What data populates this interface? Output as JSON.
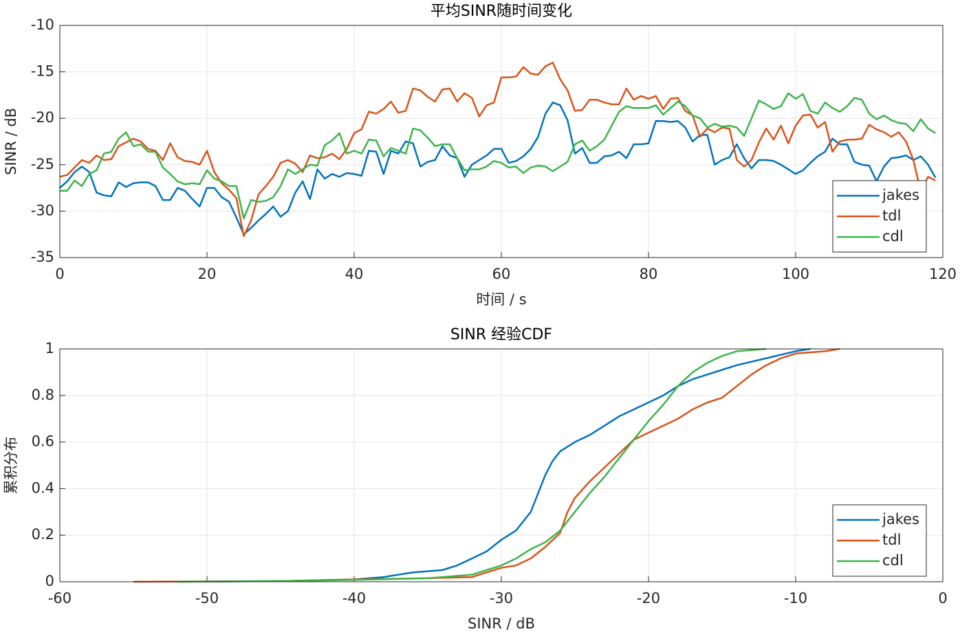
{
  "chart_data": [
    {
      "type": "line",
      "title": "平均SINR随时间变化",
      "xlabel": "时间 / s",
      "ylabel": "SINR / dB",
      "xlim": [
        0,
        120
      ],
      "ylim": [
        -35,
        -10
      ],
      "xticks": [
        0,
        20,
        40,
        60,
        80,
        100,
        120
      ],
      "yticks": [
        -35,
        -30,
        -25,
        -20,
        -15,
        -10
      ],
      "grid": true,
      "legend": "southeast",
      "x": [
        0,
        1,
        2,
        3,
        4,
        5,
        6,
        7,
        8,
        9,
        10,
        11,
        12,
        13,
        14,
        15,
        16,
        17,
        18,
        19,
        20,
        21,
        22,
        23,
        24,
        25,
        26,
        27,
        28,
        29,
        30,
        31,
        32,
        33,
        34,
        35,
        36,
        37,
        38,
        39,
        40,
        41,
        42,
        43,
        44,
        45,
        46,
        47,
        48,
        49,
        50,
        51,
        52,
        53,
        54,
        55,
        56,
        57,
        58,
        59,
        60,
        61,
        62,
        63,
        64,
        65,
        66,
        67,
        68,
        69,
        70,
        71,
        72,
        73,
        74,
        75,
        76,
        77,
        78,
        79,
        80,
        81,
        82,
        83,
        84,
        85,
        86,
        87,
        88,
        89,
        90,
        91,
        92,
        93,
        94,
        95,
        96,
        97,
        98,
        99,
        100,
        101,
        102,
        103,
        104,
        105,
        106,
        107,
        108,
        109,
        110,
        111,
        112,
        113,
        114,
        115,
        116,
        117,
        118,
        119
      ],
      "series": [
        {
          "name": "jakes",
          "color": "#0072BD",
          "values": [
            -27.5,
            -26.8,
            -25.8,
            -25.2,
            -25.8,
            -28,
            -28.3,
            -28.4,
            -26.9,
            -27.4,
            -27,
            -26.9,
            -26.9,
            -27.3,
            -28.8,
            -28.8,
            -27.5,
            -27.8,
            -28.7,
            -29.5,
            -27.5,
            -27.5,
            -28.5,
            -29,
            -30.7,
            -32.5,
            -31.8,
            -31,
            -30.3,
            -29.5,
            -30.6,
            -30,
            -28,
            -26.8,
            -28.7,
            -25.5,
            -26.5,
            -26,
            -26.3,
            -25.9,
            -26,
            -26.2,
            -23.5,
            -23.6,
            -26,
            -23.5,
            -23.8,
            -22.5,
            -22.7,
            -25.2,
            -24.7,
            -24.5,
            -23,
            -24,
            -24.3,
            -26.3,
            -25,
            -24.5,
            -24,
            -23.3,
            -23.3,
            -24.8,
            -24.6,
            -24.1,
            -23.3,
            -22,
            -19.5,
            -18.3,
            -18.6,
            -20.2,
            -23.8,
            -23.2,
            -24.8,
            -24.8,
            -24.1,
            -24,
            -23.6,
            -24.3,
            -22.8,
            -22.8,
            -22.7,
            -20.3,
            -20.3,
            -20.4,
            -20.3,
            -21,
            -22.5,
            -21.8,
            -21.8,
            -25,
            -24.5,
            -24.2,
            -22.8,
            -24.3,
            -25.4,
            -24.5,
            -24.5,
            -24.6,
            -25,
            -25.5,
            -26,
            -25.6,
            -24.8,
            -24.1,
            -23.6,
            -22.2,
            -22.8,
            -22.8,
            -24.7,
            -25,
            -25.1,
            -26.8,
            -25.2,
            -24.3,
            -24.2,
            -24,
            -24.5,
            -24.1,
            -25,
            -26.4
          ]
        },
        {
          "name": "tdl",
          "color": "#D95319",
          "values": [
            -26.3,
            -26.1,
            -25.3,
            -24.5,
            -24.8,
            -24,
            -24.5,
            -24.4,
            -23,
            -22.6,
            -22.2,
            -22.5,
            -23.3,
            -23.5,
            -24.5,
            -22.7,
            -24.2,
            -24.6,
            -24.7,
            -25,
            -23.5,
            -25.8,
            -27,
            -27.7,
            -28.6,
            -32.7,
            -31,
            -28.2,
            -27.3,
            -26.3,
            -24.8,
            -24.5,
            -24.9,
            -25.8,
            -24,
            -24.3,
            -24.2,
            -23.8,
            -24.4,
            -23.3,
            -21.6,
            -21.2,
            -19.3,
            -19.5,
            -19,
            -18.2,
            -19.4,
            -19.2,
            -16.8,
            -17,
            -17.7,
            -18.2,
            -16.9,
            -16.8,
            -18.2,
            -17.3,
            -17.8,
            -19.8,
            -18.6,
            -18.3,
            -15.6,
            -15.6,
            -15.5,
            -14.5,
            -15.2,
            -15.3,
            -14.4,
            -14,
            -15.8,
            -17,
            -19.2,
            -19.1,
            -18,
            -18,
            -18.3,
            -18.5,
            -18.5,
            -16.8,
            -18,
            -17.6,
            -17.9,
            -17.6,
            -19,
            -17.9,
            -17.8,
            -19.2,
            -19.7,
            -22,
            -21.1,
            -21.5,
            -21,
            -21.1,
            -24.5,
            -25.2,
            -24.5,
            -22.6,
            -21.1,
            -22.3,
            -20.8,
            -22.7,
            -20.8,
            -19.7,
            -19.6,
            -21,
            -20.4,
            -23.6,
            -22.5,
            -22.3,
            -22.3,
            -22.2,
            -20.7,
            -21.2,
            -21.5,
            -22,
            -21.5,
            -22.5,
            -24.5,
            -27.9,
            -26.3,
            -26.7
          ]
        },
        {
          "name": "cdl",
          "color": "#3DB34A",
          "values": [
            -27.8,
            -27.8,
            -26.7,
            -27.3,
            -26,
            -25.6,
            -23.8,
            -23.6,
            -22.2,
            -21.5,
            -23,
            -22.8,
            -23.6,
            -23.6,
            -25.3,
            -26,
            -26.8,
            -27.1,
            -27,
            -27.1,
            -25.6,
            -26.5,
            -26.8,
            -27.3,
            -27.3,
            -30.8,
            -28.8,
            -29,
            -28.9,
            -28.5,
            -27.3,
            -25.5,
            -26,
            -25.5,
            -25,
            -25.1,
            -22.9,
            -22.4,
            -21.6,
            -23.8,
            -23.5,
            -23.8,
            -22.3,
            -22.4,
            -24.1,
            -23.2,
            -23.5,
            -23.8,
            -21.1,
            -21.3,
            -22.1,
            -23,
            -22.8,
            -22.8,
            -24.3,
            -25.6,
            -25.5,
            -25.5,
            -25.2,
            -24.6,
            -24.8,
            -25.3,
            -25.2,
            -25.9,
            -25.3,
            -25.1,
            -25.2,
            -25.7,
            -25.2,
            -24.7,
            -22.8,
            -22.4,
            -23.5,
            -23,
            -22.3,
            -20.8,
            -19.3,
            -18.7,
            -18.9,
            -18.9,
            -18.9,
            -18.6,
            -19.6,
            -18.9,
            -18.2,
            -18.7,
            -19.7,
            -20,
            -21,
            -20.6,
            -20.9,
            -20.8,
            -21,
            -21.9,
            -20,
            -18.1,
            -18.5,
            -19,
            -18.7,
            -17.3,
            -17.9,
            -17.4,
            -19.2,
            -19.5,
            -18.3,
            -18.9,
            -19.3,
            -18.7,
            -17.8,
            -18,
            -19.5,
            -20.1,
            -19.7,
            -20.2,
            -20.5,
            -20.6,
            -21.4,
            -20.1,
            -21.1,
            -21.6
          ]
        }
      ]
    },
    {
      "type": "line",
      "title": "SINR 经验CDF",
      "xlabel": "SINR / dB",
      "ylabel": "累积分布",
      "xlim": [
        -60,
        0
      ],
      "ylim": [
        0,
        1
      ],
      "xticks": [
        -60,
        -50,
        -40,
        -30,
        -20,
        -10,
        0
      ],
      "yticks": [
        0,
        0.2,
        0.4,
        0.6,
        0.8,
        1
      ],
      "grid": true,
      "legend": "southeast",
      "series": [
        {
          "name": "jakes",
          "color": "#0072BD",
          "x": [
            -52,
            -45,
            -40,
            -38,
            -36,
            -34,
            -33,
            -32,
            -31,
            -30,
            -29,
            -28,
            -27.5,
            -27,
            -26.5,
            -26,
            -25,
            -24,
            -23,
            -22,
            -21,
            -20,
            -19,
            -18,
            -17,
            -16,
            -15,
            -14,
            -12,
            -10,
            -9
          ],
          "values": [
            0,
            0.003,
            0.01,
            0.02,
            0.04,
            0.05,
            0.07,
            0.1,
            0.13,
            0.18,
            0.22,
            0.3,
            0.38,
            0.46,
            0.52,
            0.56,
            0.6,
            0.63,
            0.67,
            0.71,
            0.74,
            0.77,
            0.8,
            0.84,
            0.87,
            0.89,
            0.91,
            0.93,
            0.96,
            0.99,
            1
          ]
        },
        {
          "name": "tdl",
          "color": "#D95319",
          "x": [
            -55,
            -45,
            -40,
            -35,
            -32,
            -31,
            -30,
            -29,
            -28,
            -27,
            -26,
            -25.5,
            -25,
            -24,
            -23,
            -22,
            -21,
            -20,
            -19,
            -18,
            -17,
            -16,
            -15,
            -14,
            -13,
            -12,
            -11,
            -10,
            -8,
            -7
          ],
          "values": [
            0,
            0.003,
            0.01,
            0.015,
            0.02,
            0.04,
            0.06,
            0.07,
            0.1,
            0.15,
            0.21,
            0.3,
            0.36,
            0.43,
            0.49,
            0.55,
            0.61,
            0.64,
            0.67,
            0.7,
            0.74,
            0.77,
            0.79,
            0.84,
            0.89,
            0.93,
            0.96,
            0.98,
            0.99,
            1
          ]
        },
        {
          "name": "cdl",
          "color": "#3DB34A",
          "x": [
            -52,
            -45,
            -40,
            -35,
            -32,
            -31,
            -30,
            -29,
            -28,
            -27,
            -26,
            -25,
            -24,
            -23,
            -22,
            -21,
            -20,
            -19,
            -18,
            -17,
            -16,
            -15,
            -14,
            -12
          ],
          "values": [
            0,
            0.003,
            0.008,
            0.015,
            0.03,
            0.05,
            0.07,
            0.1,
            0.14,
            0.17,
            0.22,
            0.3,
            0.38,
            0.45,
            0.53,
            0.61,
            0.69,
            0.76,
            0.84,
            0.9,
            0.94,
            0.97,
            0.99,
            1
          ]
        }
      ]
    }
  ]
}
